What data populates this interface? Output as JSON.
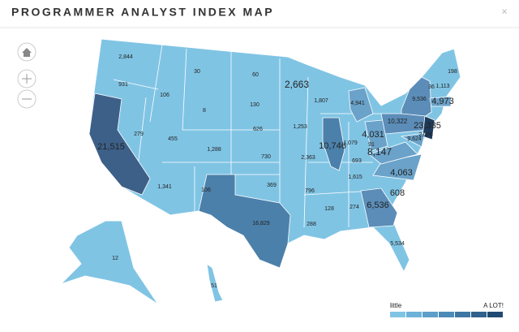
{
  "header": {
    "title": "PROGRAMMER ANALYST INDEX MAP"
  },
  "states": [
    {
      "label": "2,844"
    },
    {
      "label": "931"
    },
    {
      "label": "21,515",
      "color": "#3d6089"
    },
    {
      "label": "279"
    },
    {
      "label": "106"
    },
    {
      "label": "30"
    },
    {
      "label": "8"
    },
    {
      "label": "455"
    },
    {
      "label": "1,288"
    },
    {
      "label": "1,341"
    },
    {
      "label": "106"
    },
    {
      "label": "60"
    },
    {
      "label": "130"
    },
    {
      "label": "626"
    },
    {
      "label": "730"
    },
    {
      "label": "369"
    },
    {
      "label": "16,829",
      "color": "#4b80aa"
    },
    {
      "label": "2,663"
    },
    {
      "label": "1,253"
    },
    {
      "label": "2,363"
    },
    {
      "label": "796"
    },
    {
      "label": "288"
    },
    {
      "label": "1,807"
    },
    {
      "label": "10,746",
      "color": "#4b80aa"
    },
    {
      "label": "4,941",
      "color": "#6aa2c9"
    },
    {
      "label": "1,079"
    },
    {
      "label": "4,031",
      "color": "#6aa2c9"
    },
    {
      "label": "693"
    },
    {
      "label": "1,615"
    },
    {
      "label": "128"
    },
    {
      "label": "274"
    },
    {
      "label": "6,536",
      "color": "#5b8db8"
    },
    {
      "label": "5,534"
    },
    {
      "label": "608"
    },
    {
      "label": "4,063",
      "color": "#6aa2c9"
    },
    {
      "label": "8,147",
      "color": "#6aa2c9"
    },
    {
      "label": "91"
    },
    {
      "label": "10,322",
      "color": "#5b8db8"
    },
    {
      "label": "9,536",
      "color": "#5b8db8"
    },
    {
      "label": "198"
    },
    {
      "label": "36"
    },
    {
      "label": "1,113"
    },
    {
      "label": "4,973",
      "color": "#6aa2c9"
    },
    {
      "label": "23,335",
      "color": "#1f3b5c"
    },
    {
      "label": "9,624",
      "color": "#6aa2c9"
    },
    {
      "label": "2,076"
    },
    {
      "label": "12"
    },
    {
      "label": "51"
    }
  ],
  "legend": {
    "low": "little",
    "high": "A LOT!",
    "colors": [
      "#80c4e4",
      "#6cb2d8",
      "#5b9fca",
      "#4c8bb7",
      "#3e76a3",
      "#30608c",
      "#214a72"
    ]
  }
}
